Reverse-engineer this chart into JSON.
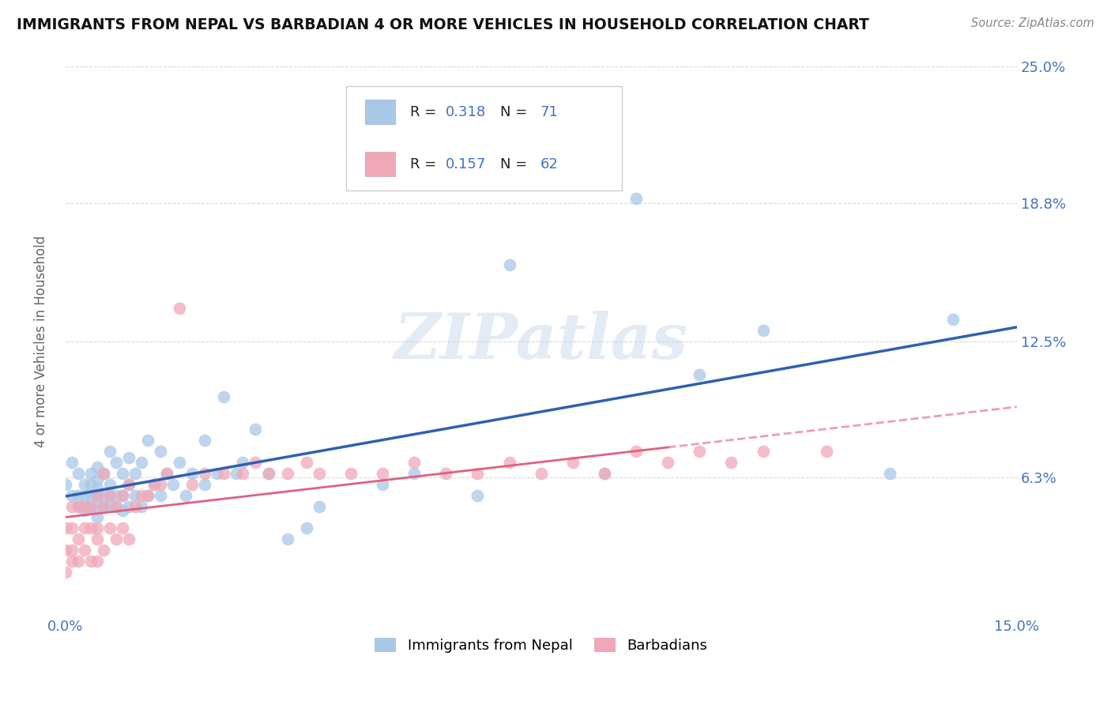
{
  "title": "IMMIGRANTS FROM NEPAL VS BARBADIAN 4 OR MORE VEHICLES IN HOUSEHOLD CORRELATION CHART",
  "source": "Source: ZipAtlas.com",
  "ylabel_label": "4 or more Vehicles in Household",
  "legend_label_1": "Immigrants from Nepal",
  "legend_label_2": "Barbadians",
  "R1": "0.318",
  "N1": "71",
  "R2": "0.157",
  "N2": "62",
  "color_blue": "#a8c8e8",
  "color_pink": "#f0a8b8",
  "color_blue_line": "#3060b0",
  "color_pink_line": "#e06080",
  "color_blue_text": "#4472c4",
  "background_color": "#ffffff",
  "grid_color": "#d8d8d8",
  "watermark": "ZIPatlas",
  "xlim": [
    0.0,
    0.15
  ],
  "ylim": [
    0.0,
    0.25
  ],
  "nepal_x": [
    0.0,
    0.001,
    0.001,
    0.002,
    0.002,
    0.002,
    0.003,
    0.003,
    0.003,
    0.003,
    0.004,
    0.004,
    0.004,
    0.004,
    0.005,
    0.005,
    0.005,
    0.005,
    0.005,
    0.005,
    0.006,
    0.006,
    0.006,
    0.007,
    0.007,
    0.007,
    0.007,
    0.008,
    0.008,
    0.008,
    0.009,
    0.009,
    0.009,
    0.01,
    0.01,
    0.01,
    0.011,
    0.011,
    0.012,
    0.012,
    0.013,
    0.013,
    0.014,
    0.015,
    0.015,
    0.016,
    0.017,
    0.018,
    0.019,
    0.02,
    0.022,
    0.022,
    0.024,
    0.025,
    0.027,
    0.028,
    0.03,
    0.032,
    0.035,
    0.038,
    0.04,
    0.05,
    0.055,
    0.065,
    0.07,
    0.085,
    0.09,
    0.1,
    0.11,
    0.13,
    0.14
  ],
  "nepal_y": [
    0.06,
    0.055,
    0.07,
    0.05,
    0.055,
    0.065,
    0.048,
    0.05,
    0.055,
    0.06,
    0.05,
    0.055,
    0.06,
    0.065,
    0.045,
    0.05,
    0.055,
    0.058,
    0.062,
    0.068,
    0.05,
    0.055,
    0.065,
    0.05,
    0.055,
    0.06,
    0.075,
    0.05,
    0.055,
    0.07,
    0.048,
    0.055,
    0.065,
    0.05,
    0.06,
    0.072,
    0.055,
    0.065,
    0.05,
    0.07,
    0.055,
    0.08,
    0.06,
    0.055,
    0.075,
    0.065,
    0.06,
    0.07,
    0.055,
    0.065,
    0.06,
    0.08,
    0.065,
    0.1,
    0.065,
    0.07,
    0.085,
    0.065,
    0.035,
    0.04,
    0.05,
    0.06,
    0.065,
    0.055,
    0.16,
    0.065,
    0.19,
    0.11,
    0.13,
    0.065,
    0.135
  ],
  "barbadian_x": [
    0.0,
    0.0,
    0.0,
    0.001,
    0.001,
    0.001,
    0.001,
    0.002,
    0.002,
    0.002,
    0.003,
    0.003,
    0.003,
    0.004,
    0.004,
    0.004,
    0.005,
    0.005,
    0.005,
    0.005,
    0.006,
    0.006,
    0.006,
    0.007,
    0.007,
    0.008,
    0.008,
    0.009,
    0.009,
    0.01,
    0.01,
    0.011,
    0.012,
    0.013,
    0.014,
    0.015,
    0.016,
    0.018,
    0.02,
    0.022,
    0.025,
    0.028,
    0.03,
    0.032,
    0.035,
    0.038,
    0.04,
    0.045,
    0.05,
    0.055,
    0.06,
    0.065,
    0.07,
    0.075,
    0.08,
    0.085,
    0.09,
    0.095,
    0.1,
    0.105,
    0.11,
    0.12
  ],
  "barbadian_y": [
    0.02,
    0.03,
    0.04,
    0.025,
    0.03,
    0.04,
    0.05,
    0.025,
    0.035,
    0.05,
    0.03,
    0.04,
    0.05,
    0.025,
    0.04,
    0.05,
    0.025,
    0.035,
    0.04,
    0.055,
    0.03,
    0.05,
    0.065,
    0.04,
    0.055,
    0.035,
    0.05,
    0.04,
    0.055,
    0.035,
    0.06,
    0.05,
    0.055,
    0.055,
    0.06,
    0.06,
    0.065,
    0.14,
    0.06,
    0.065,
    0.065,
    0.065,
    0.07,
    0.065,
    0.065,
    0.07,
    0.065,
    0.065,
    0.065,
    0.07,
    0.065,
    0.065,
    0.07,
    0.065,
    0.07,
    0.065,
    0.075,
    0.07,
    0.075,
    0.07,
    0.075,
    0.075
  ]
}
